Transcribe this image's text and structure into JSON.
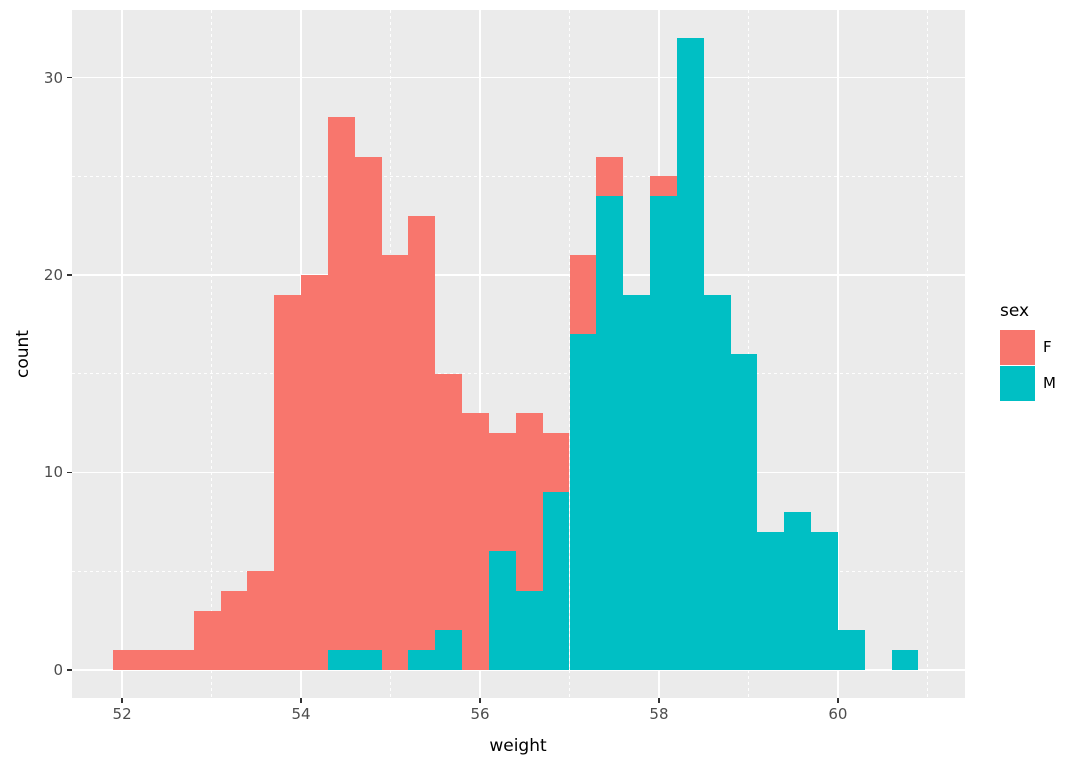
{
  "chart_data": {
    "type": "bar",
    "subtype": "overlaid-histogram",
    "title": "",
    "xlabel": "weight",
    "ylabel": "count",
    "xlim": [
      51.44,
      61.42
    ],
    "ylim": [
      -1.42,
      33.42
    ],
    "x_ticks": [
      52,
      54,
      56,
      58,
      60
    ],
    "x_minor_ticks": [
      53,
      55,
      57,
      59,
      61
    ],
    "y_ticks": [
      0,
      10,
      20,
      30
    ],
    "y_minor_ticks": [
      5,
      15,
      25
    ],
    "grid": "major+minor",
    "panel_bg": "#EBEBEB",
    "gridline_color": "#FFFFFF",
    "tick_color": "#333333",
    "tick_label_color": "#4D4D4D",
    "binwidth": 0.3,
    "bin_starts": [
      51.9,
      52.2,
      52.5,
      52.8,
      53.1,
      53.4,
      53.7,
      54.0,
      54.3,
      54.6,
      54.9,
      55.2,
      55.5,
      55.8,
      56.1,
      56.4,
      56.7,
      57.0,
      57.3,
      57.6,
      57.9,
      58.2,
      58.5,
      58.8,
      59.1,
      59.4,
      59.7,
      60.0,
      60.3,
      60.6
    ],
    "series": [
      {
        "name": "F",
        "color": "#F8766D",
        "counts": [
          1,
          1,
          1,
          3,
          4,
          5,
          19,
          20,
          28,
          26,
          21,
          23,
          15,
          13,
          12,
          13,
          12,
          21,
          26,
          0,
          25,
          0,
          0,
          0,
          0,
          0,
          0,
          0,
          0,
          0
        ]
      },
      {
        "name": "M",
        "color": "#00BFC4",
        "counts": [
          0,
          0,
          0,
          0,
          0,
          0,
          0,
          0,
          1,
          1,
          0,
          1,
          2,
          0,
          6,
          4,
          9,
          17,
          24,
          19,
          24,
          32,
          19,
          16,
          7,
          8,
          7,
          2,
          0,
          1
        ]
      }
    ],
    "legend": {
      "title": "sex",
      "position": "right",
      "entries": [
        {
          "label": "F",
          "color": "#F8766D"
        },
        {
          "label": "M",
          "color": "#00BFC4"
        }
      ]
    }
  }
}
